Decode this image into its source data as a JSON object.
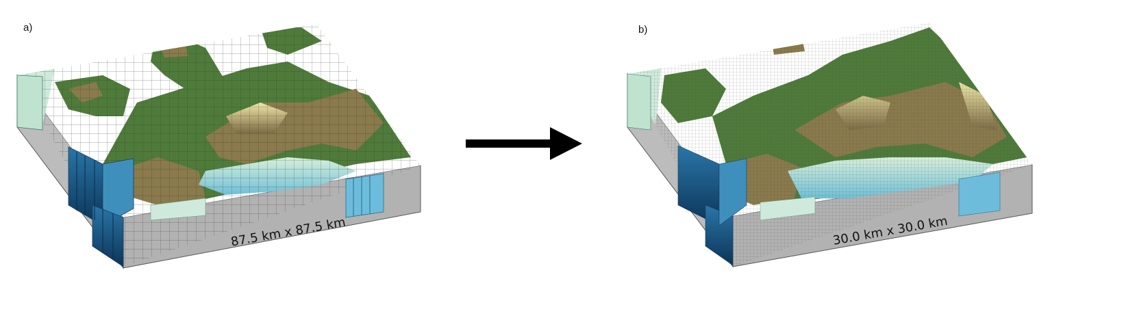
{
  "panels": [
    {
      "label": "a)",
      "grid_text": "87.5 km x 87.5 km",
      "grid_spacing_km": 87.5
    },
    {
      "label": "b)",
      "grid_text": "30.0 km x 30.0 km",
      "grid_spacing_km": 30.0
    }
  ],
  "arrow": {
    "direction": "right"
  },
  "colors": {
    "land_low": "#4f7b3a",
    "land_mid": "#8a7a4c",
    "mountain": "#d6cc88",
    "sea_shallow": "#bfe3cf",
    "sea_mid": "#5fb3cc",
    "sea_deep": "#12456f",
    "sea_surface": "#ffffff",
    "block_side": "#bdbdbd"
  }
}
